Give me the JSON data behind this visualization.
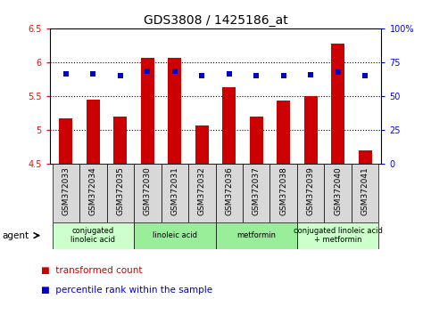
{
  "title": "GDS3808 / 1425186_at",
  "samples": [
    "GSM372033",
    "GSM372034",
    "GSM372035",
    "GSM372030",
    "GSM372031",
    "GSM372032",
    "GSM372036",
    "GSM372037",
    "GSM372038",
    "GSM372039",
    "GSM372040",
    "GSM372041"
  ],
  "bar_values": [
    5.17,
    5.45,
    5.2,
    6.07,
    6.07,
    5.07,
    5.63,
    5.2,
    5.43,
    5.5,
    6.27,
    4.7
  ],
  "dot_values_left": [
    5.83,
    5.83,
    5.8,
    5.87,
    5.87,
    5.8,
    5.83,
    5.8,
    5.8,
    5.82,
    5.85,
    5.8
  ],
  "ylim": [
    4.5,
    6.5
  ],
  "y2lim": [
    0,
    100
  ],
  "yticks": [
    4.5,
    5.0,
    5.5,
    6.0,
    6.5
  ],
  "y2ticks": [
    0,
    25,
    50,
    75,
    100
  ],
  "bar_color": "#cc0000",
  "dot_color": "#0000cc",
  "bar_bottom": 4.5,
  "agent_groups": [
    {
      "label": "conjugated\nlinoleic acid",
      "start": 0,
      "end": 3,
      "color": "#ccffcc"
    },
    {
      "label": "linoleic acid",
      "start": 3,
      "end": 6,
      "color": "#99ee99"
    },
    {
      "label": "metformin",
      "start": 6,
      "end": 9,
      "color": "#99ee99"
    },
    {
      "label": "conjugated linoleic acid\n+ metformin",
      "start": 9,
      "end": 12,
      "color": "#ccffcc"
    }
  ],
  "title_fontsize": 10,
  "tick_fontsize": 7,
  "sample_fontsize": 6.5,
  "agent_label": "agent"
}
